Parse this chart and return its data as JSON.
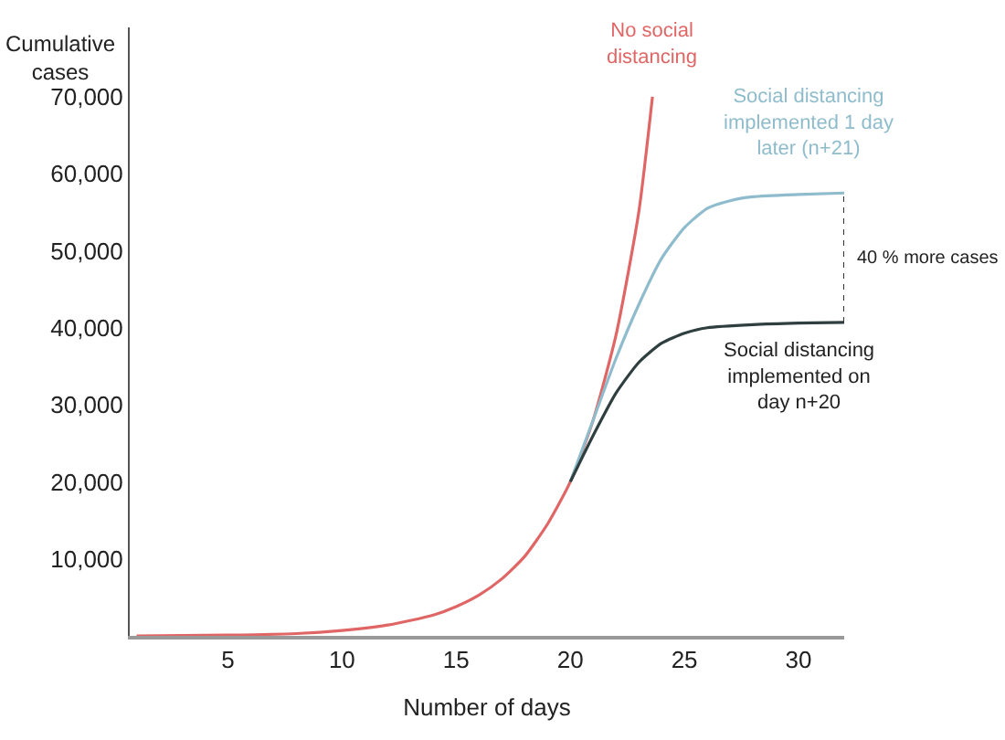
{
  "chart_data": {
    "type": "line",
    "xlabel": "Number of days",
    "ylabel": "Cumulative cases",
    "xlim": [
      0.7,
      32
    ],
    "xticks": [
      5,
      10,
      15,
      20,
      25,
      30
    ],
    "ylim": [
      0,
      79000
    ],
    "yticks": [
      {
        "value": 10000,
        "label": "10,000"
      },
      {
        "value": 20000,
        "label": "20,000"
      },
      {
        "value": 30000,
        "label": "30,000"
      },
      {
        "value": 40000,
        "label": "40,000"
      },
      {
        "value": 50000,
        "label": "50,000"
      },
      {
        "value": 60000,
        "label": "60,000"
      },
      {
        "value": 70000,
        "label": "70,000"
      }
    ],
    "marker": "none",
    "line_style": "solid",
    "series": [
      {
        "name": "No social distancing",
        "color": "#e06666",
        "x": [
          1,
          5,
          8,
          10,
          12,
          14,
          15,
          16,
          17,
          18,
          19,
          20,
          21,
          22,
          23,
          23.6
        ],
        "values": [
          0,
          100,
          300,
          700,
          1400,
          2700,
          3800,
          5300,
          7400,
          10300,
          14500,
          20000,
          28000,
          39000,
          55000,
          70000
        ]
      },
      {
        "name": "Social distancing implemented 1 day later (n+21)",
        "color": "#8fbccc",
        "x": [
          20,
          21,
          22,
          23,
          24,
          25,
          26,
          27,
          28,
          30,
          32
        ],
        "values": [
          20000,
          28000,
          36000,
          43000,
          49000,
          53000,
          55500,
          56500,
          57000,
          57300,
          57500
        ]
      },
      {
        "name": "Social distancing implemented on day n+20",
        "color": "#2f3f3f",
        "x": [
          20,
          21,
          22,
          23,
          24,
          25,
          26,
          28,
          30,
          32
        ],
        "values": [
          20000,
          26000,
          31500,
          35500,
          38000,
          39300,
          40000,
          40400,
          40600,
          40700
        ]
      }
    ],
    "annotations": [
      "40 % more cases"
    ]
  }
}
